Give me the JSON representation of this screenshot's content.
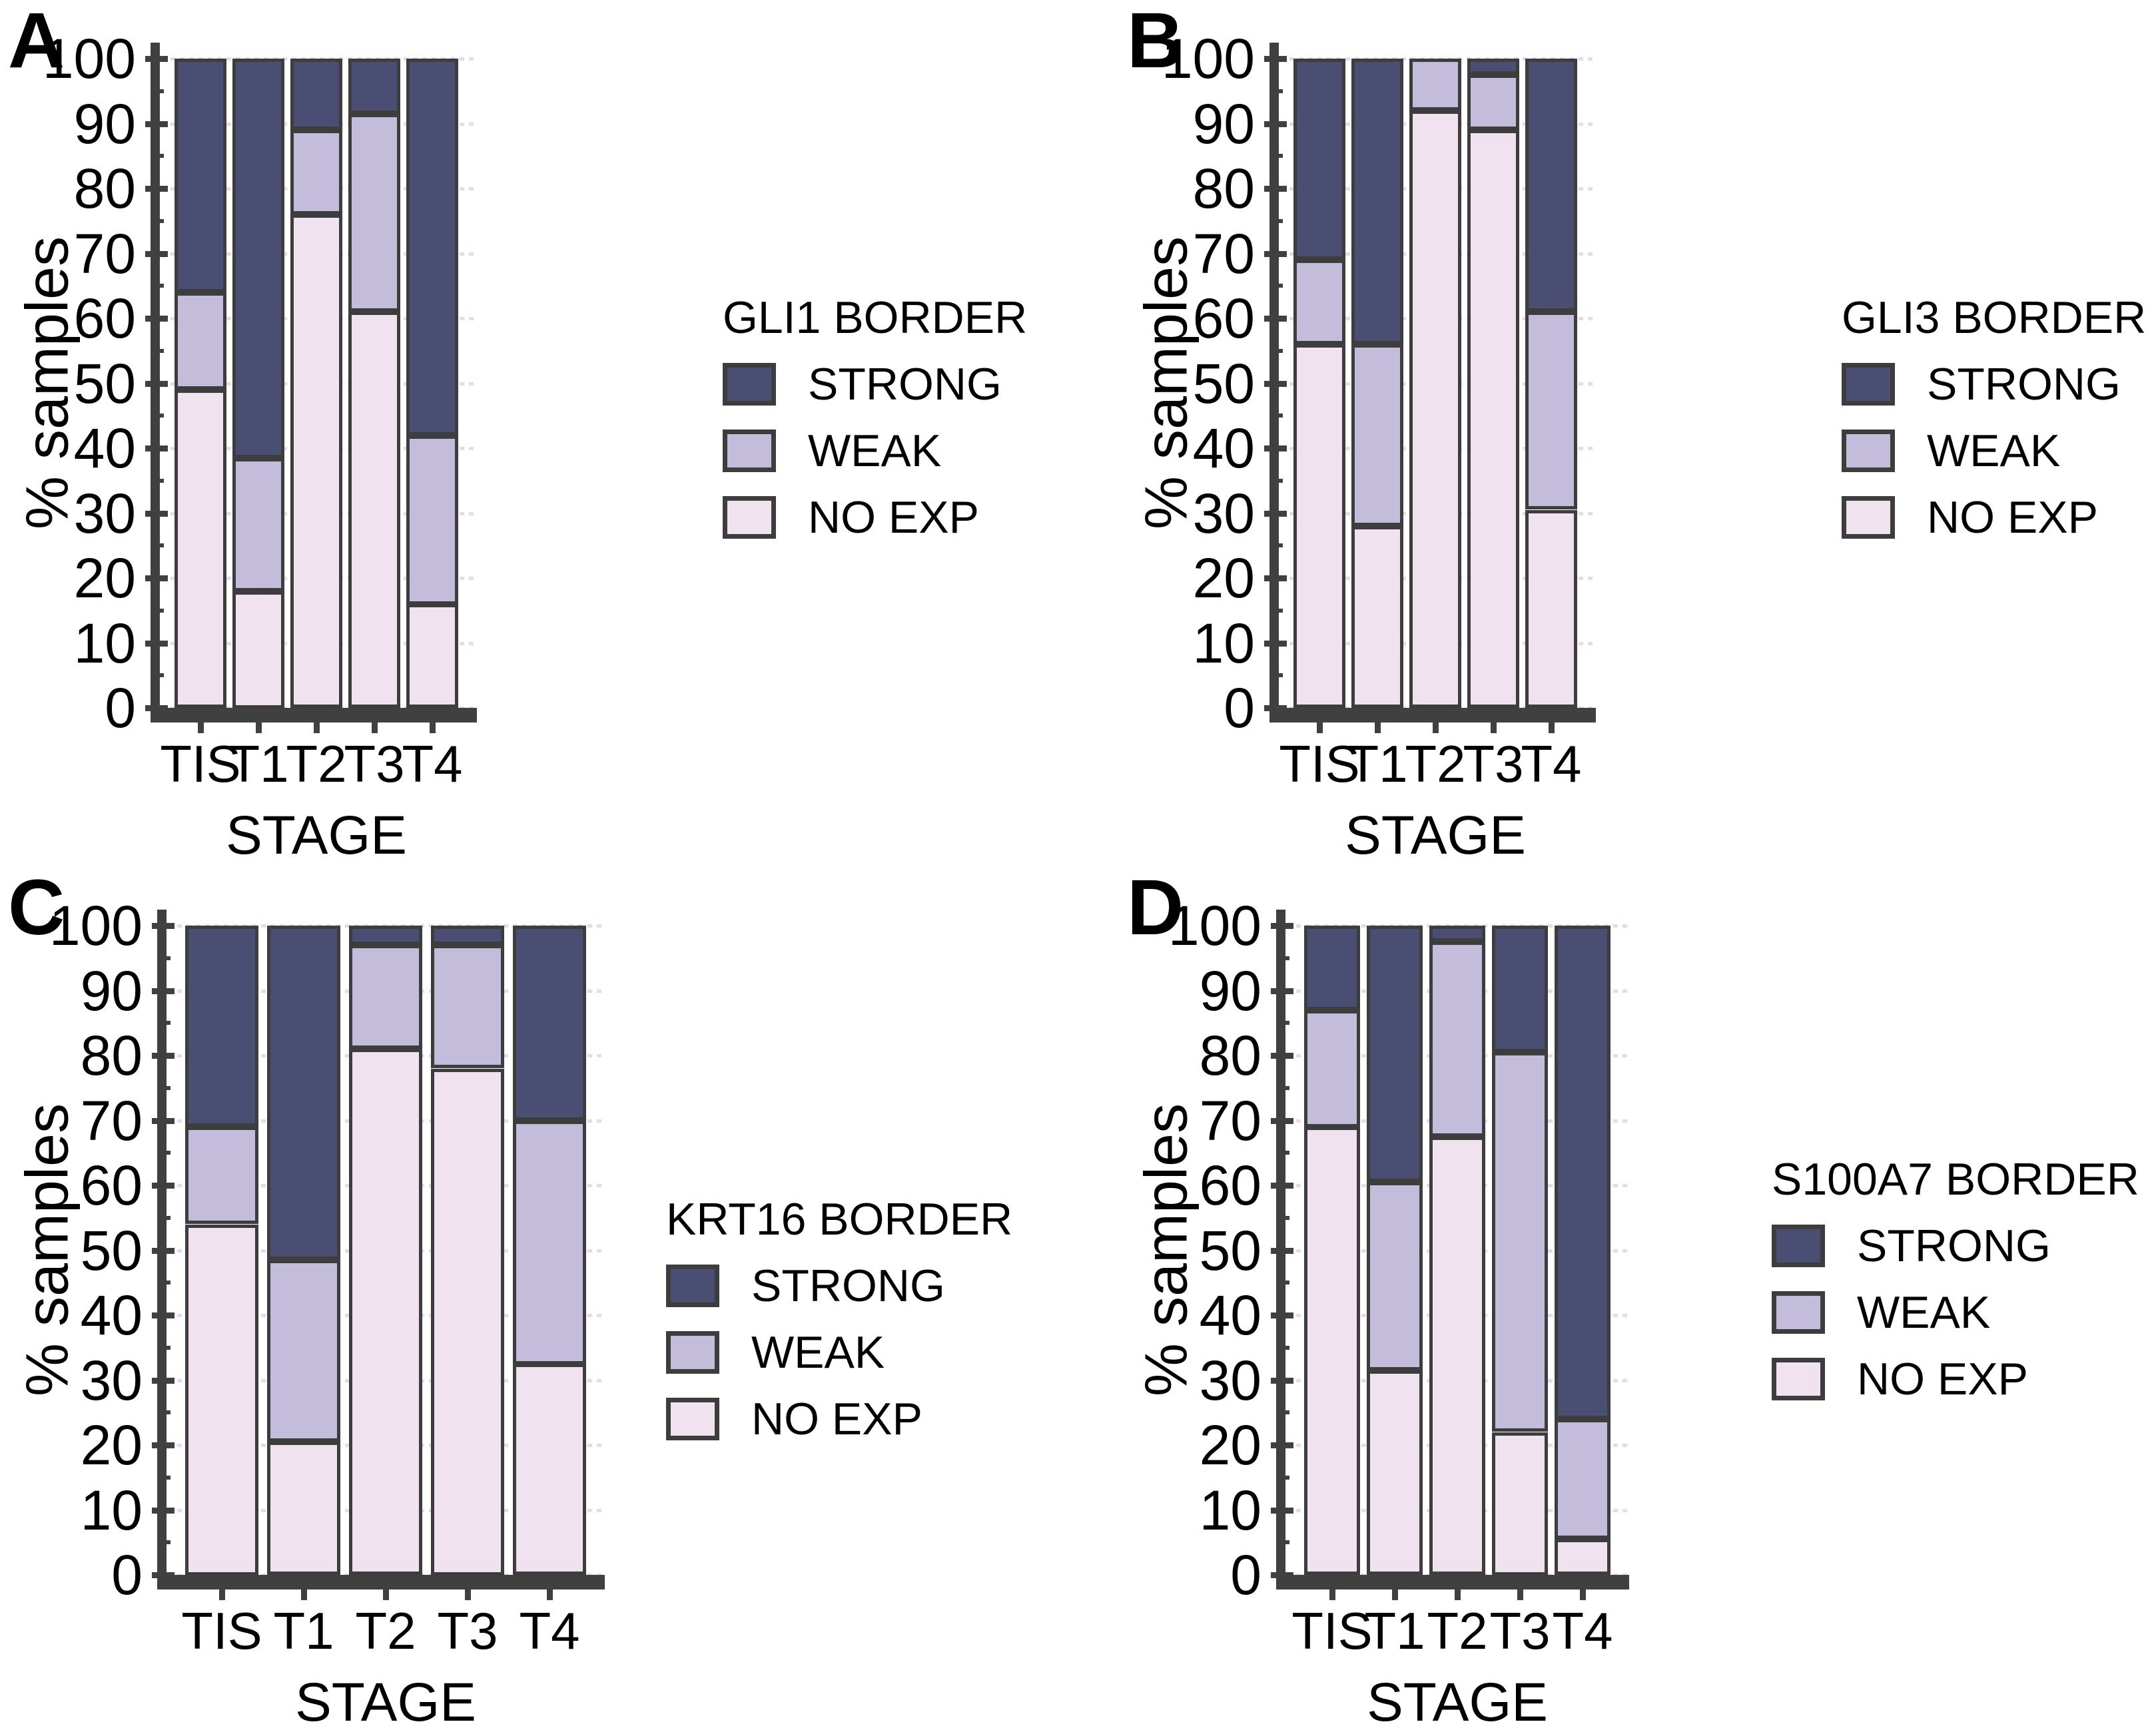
{
  "styles": {
    "strong_color": "#4a4e72",
    "weak_color": "#c3bcda",
    "noexp_color": "#f0e3ef",
    "axis_color": "#404040",
    "bar_outline_color": "#3d3d3d",
    "grid_dot_color": "#ecd9e7",
    "background": "#ffffff",
    "text_color": "#000000"
  },
  "chart_data": [
    {
      "type": "bar",
      "stacked": true,
      "panel_label": "A",
      "legend_title": "GLI1 BORDER",
      "categories": [
        "TIS",
        "T1",
        "T2",
        "T3",
        "T4"
      ],
      "series": [
        {
          "name": "STRONG",
          "color": "#4a4e72",
          "values": [
            36,
            61.5,
            11,
            8.5,
            58
          ]
        },
        {
          "name": "WEAK",
          "color": "#c3bcda",
          "values": [
            15,
            20.5,
            13,
            30.5,
            26
          ]
        },
        {
          "name": "NO EXP",
          "color": "#f0e3ef",
          "values": [
            49,
            18,
            76,
            61,
            16
          ]
        }
      ],
      "stack_order_bottom_to_top": [
        "NO EXP",
        "WEAK",
        "STRONG"
      ],
      "xlabel": "STAGE",
      "ylabel": "% samples",
      "ylim": [
        0,
        100
      ],
      "yticks": [
        0,
        10,
        20,
        30,
        40,
        50,
        60,
        70,
        80,
        90,
        100
      ],
      "legend_position": "right",
      "grid": "dotted horizontal every 10"
    },
    {
      "type": "bar",
      "stacked": true,
      "panel_label": "B",
      "legend_title": "GLI3 BORDER",
      "categories": [
        "TIS",
        "T1",
        "T2",
        "T3",
        "T4"
      ],
      "series": [
        {
          "name": "STRONG",
          "color": "#4a4e72",
          "values": [
            31,
            44,
            0,
            2.5,
            39
          ]
        },
        {
          "name": "WEAK",
          "color": "#c3bcda",
          "values": [
            13,
            28,
            8,
            8.5,
            30.5
          ]
        },
        {
          "name": "NO EXP",
          "color": "#f0e3ef",
          "values": [
            56,
            28,
            92,
            89,
            30.5
          ]
        }
      ],
      "stack_order_bottom_to_top": [
        "NO EXP",
        "WEAK",
        "STRONG"
      ],
      "xlabel": "STAGE",
      "ylabel": "% samples",
      "ylim": [
        0,
        100
      ],
      "yticks": [
        0,
        10,
        20,
        30,
        40,
        50,
        60,
        70,
        80,
        90,
        100
      ],
      "legend_position": "right",
      "grid": "dotted horizontal every 10"
    },
    {
      "type": "bar",
      "stacked": true,
      "panel_label": "C",
      "legend_title": "KRT16 BORDER",
      "categories": [
        "TIS",
        "T1",
        "T2",
        "T3",
        "T4"
      ],
      "series": [
        {
          "name": "STRONG",
          "color": "#4a4e72",
          "values": [
            31,
            51.5,
            3,
            3,
            30
          ]
        },
        {
          "name": "WEAK",
          "color": "#c3bcda",
          "values": [
            15,
            28,
            16,
            19,
            37.5
          ]
        },
        {
          "name": "NO EXP",
          "color": "#f0e3ef",
          "values": [
            54,
            20.5,
            81,
            78,
            32.5
          ]
        }
      ],
      "stack_order_bottom_to_top": [
        "NO EXP",
        "WEAK",
        "STRONG"
      ],
      "xlabel": "STAGE",
      "ylabel": "% samples",
      "ylim": [
        0,
        100
      ],
      "yticks": [
        0,
        10,
        20,
        30,
        40,
        50,
        60,
        70,
        80,
        90,
        100
      ],
      "legend_position": "right",
      "grid": "dotted horizontal every 10"
    },
    {
      "type": "bar",
      "stacked": true,
      "panel_label": "D",
      "legend_title": "S100A7 BORDER",
      "categories": [
        "TIS",
        "T1",
        "T2",
        "T3",
        "T4"
      ],
      "series": [
        {
          "name": "STRONG",
          "color": "#4a4e72",
          "values": [
            13,
            39.5,
            2.5,
            19.5,
            76
          ]
        },
        {
          "name": "WEAK",
          "color": "#c3bcda",
          "values": [
            18,
            29,
            30,
            58.5,
            18.5
          ]
        },
        {
          "name": "NO EXP",
          "color": "#f0e3ef",
          "values": [
            69,
            31.5,
            67.5,
            22,
            5.5
          ]
        }
      ],
      "stack_order_bottom_to_top": [
        "NO EXP",
        "WEAK",
        "STRONG"
      ],
      "xlabel": "STAGE",
      "ylabel": "% samples",
      "ylim": [
        0,
        100
      ],
      "yticks": [
        0,
        10,
        20,
        30,
        40,
        50,
        60,
        70,
        80,
        90,
        100
      ],
      "legend_position": "right",
      "grid": "dotted horizontal every 10"
    }
  ]
}
